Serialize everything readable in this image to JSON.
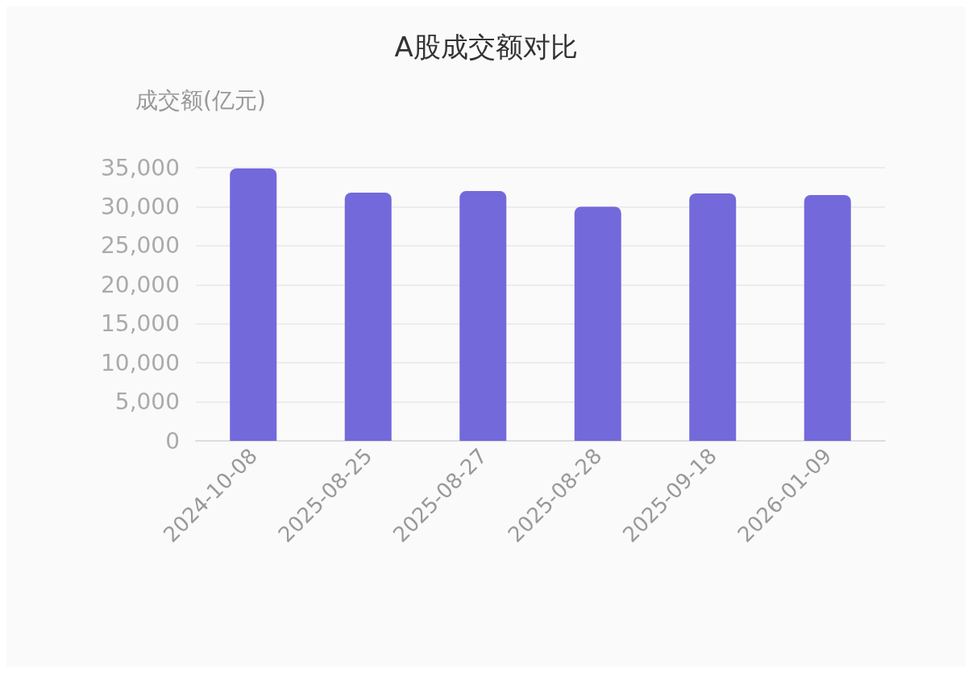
{
  "chart_data": {
    "type": "bar",
    "title": "A股成交额对比",
    "ylabel": "成交额(亿元)",
    "categories": [
      "2024-10-08",
      "2025-08-25",
      "2025-08-27",
      "2025-08-28",
      "2025-09-18",
      "2026-01-09"
    ],
    "values": [
      34900,
      31800,
      32000,
      30000,
      31700,
      31500
    ],
    "color": "#7369db",
    "ylim": [
      0,
      35000
    ],
    "yticks": [
      0,
      {
        "value": 5000,
        "label": "5,000"
      },
      {
        "value": 10000,
        "label": "10,000"
      },
      {
        "value": 15000,
        "label": "15,000"
      },
      {
        "value": 20000,
        "label": "20,000"
      },
      {
        "value": 25000,
        "label": "25,000"
      },
      {
        "value": 30000,
        "label": "30,000"
      },
      {
        "value": 35000,
        "label": "35,000"
      }
    ],
    "grid": "y"
  }
}
